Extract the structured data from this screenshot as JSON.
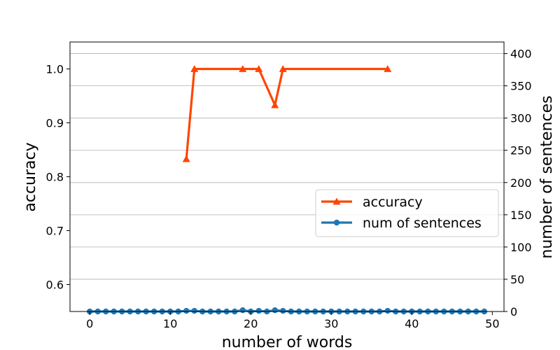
{
  "chart_data": {
    "type": "line",
    "xlabel": "number of words",
    "ylabel_left": "accuracy",
    "ylabel_right": "number of sentences",
    "xlim": [
      -2.45,
      51.45
    ],
    "ylim_left": [
      0.55,
      1.05
    ],
    "ylim_right": [
      0,
      418
    ],
    "xticks": [
      "0",
      "10",
      "20",
      "30",
      "40",
      "50"
    ],
    "yticks_left": [
      "0.6",
      "0.7",
      "0.8",
      "0.9",
      "1.0"
    ],
    "yticks_right": [
      "0",
      "50",
      "100",
      "150",
      "200",
      "250",
      "300",
      "350",
      "400"
    ],
    "grid": "horizontal, right axis",
    "legend_position": "center-right",
    "series": [
      {
        "name": "accuracy",
        "axis": "left",
        "color": "#ff4500",
        "marker": "triangle",
        "x": [
          12,
          13,
          19,
          21,
          23,
          24,
          37
        ],
        "values": [
          0.833,
          1.0,
          1.0,
          1.0,
          0.933,
          1.0,
          1.0
        ]
      },
      {
        "name": "num of sentences",
        "axis": "right",
        "color": "#1f77b4",
        "marker": "circle",
        "x": [
          0,
          1,
          2,
          3,
          4,
          5,
          6,
          7,
          8,
          9,
          10,
          11,
          12,
          13,
          14,
          15,
          16,
          17,
          18,
          19,
          20,
          21,
          22,
          23,
          24,
          25,
          26,
          27,
          28,
          29,
          30,
          31,
          32,
          33,
          34,
          35,
          36,
          37,
          38,
          39,
          40,
          41,
          42,
          43,
          44,
          45,
          46,
          47,
          48,
          49
        ],
        "values": [
          0,
          0,
          0,
          0,
          0,
          0,
          0,
          0,
          0,
          0,
          0,
          0,
          1,
          1,
          0,
          0,
          0,
          0,
          0,
          2,
          0,
          1,
          0,
          2,
          1,
          0,
          0,
          0,
          0,
          0,
          0,
          0,
          0,
          0,
          0,
          0,
          0,
          1,
          0,
          0,
          0,
          0,
          0,
          0,
          0,
          0,
          0,
          0,
          0,
          0
        ]
      }
    ]
  }
}
